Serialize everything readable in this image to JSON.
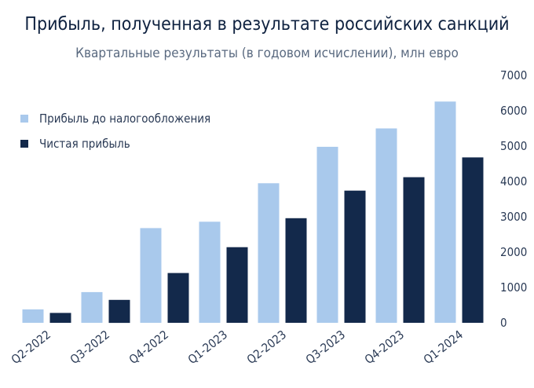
{
  "chart_data": {
    "type": "bar",
    "title": "Прибыль, полученная в результате российских санкций",
    "subtitle": "Квартальные результаты (в годовом исчислении), млн евро",
    "categories": [
      "Q2-2022",
      "Q3-2022",
      "Q4-2022",
      "Q1-2023",
      "Q2-2023",
      "Q3-2023",
      "Q4-2023",
      "Q1-2024"
    ],
    "series": [
      {
        "name": "Прибыль до налогообложения",
        "color": "#a9c9ec",
        "values": [
          380,
          870,
          2680,
          2860,
          3950,
          4980,
          5500,
          6260
        ]
      },
      {
        "name": "Чистая прибыль",
        "color": "#13294b",
        "values": [
          280,
          650,
          1410,
          2140,
          2960,
          3740,
          4120,
          4680
        ]
      }
    ],
    "y_axis": {
      "position": "right",
      "min": 0,
      "max": 7000,
      "ticks": [
        0,
        1000,
        2000,
        3000,
        4000,
        5000,
        6000,
        7000
      ]
    },
    "xlabel": "",
    "ylabel": "",
    "grid": false,
    "legend_position": "top-left"
  }
}
